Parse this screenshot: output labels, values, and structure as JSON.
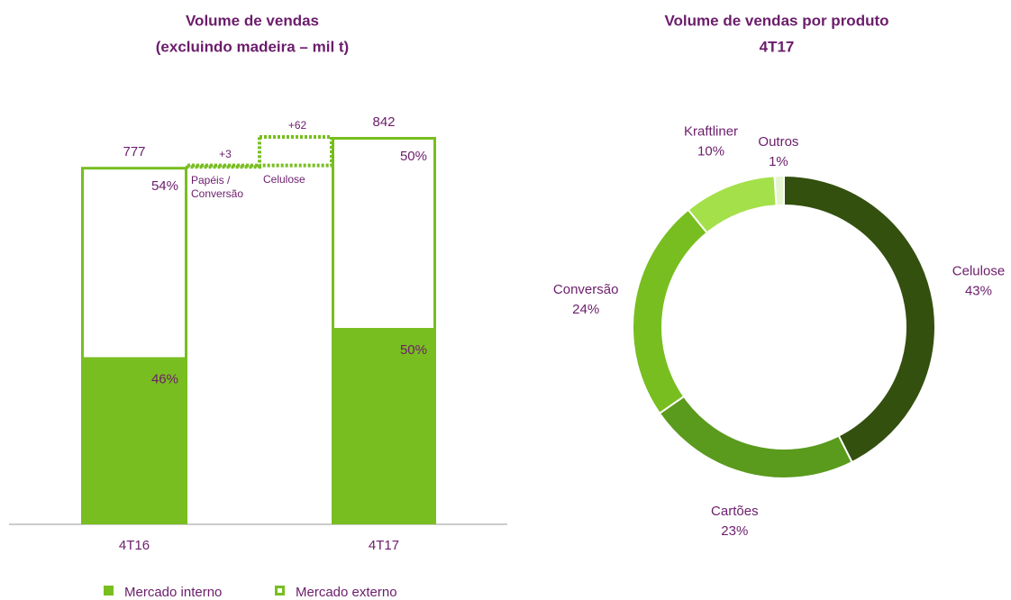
{
  "chart_data": [
    {
      "type": "waterfall",
      "title": [
        "Volume de vendas",
        "(excluindo madeira – mil t)"
      ],
      "categories": [
        "4T16",
        "4T17"
      ],
      "totals": [
        777,
        842
      ],
      "series": [
        {
          "name": "Mercado interno",
          "color": "#78be20",
          "values": [
            46,
            50
          ],
          "value_labels": [
            "46%",
            "50%"
          ]
        },
        {
          "name": "Mercado externo",
          "color": "#78be20",
          "values": [
            54,
            50
          ],
          "value_labels": [
            "54%",
            "50%"
          ]
        }
      ],
      "steps": {
        "categories": [
          "Papéis / Conversão",
          "Celulose"
        ],
        "values": [
          3,
          62
        ],
        "value_labels": [
          "+3",
          "+62"
        ],
        "color": "#78be20"
      }
    },
    {
      "type": "donut",
      "title": [
        "Volume de vendas por produto",
        "4T17"
      ],
      "categories": [
        "Celulose",
        "Cartões",
        "Conversão",
        "Kraftliner",
        "Outros"
      ],
      "values": [
        43,
        23,
        24,
        10,
        1
      ],
      "value_labels": [
        "43%",
        "23%",
        "24%",
        "10%",
        "1%"
      ],
      "colors": [
        "#33500f",
        "#5a9a1d",
        "#78be20",
        "#a4e04a",
        "#e6f5d0"
      ]
    }
  ]
}
